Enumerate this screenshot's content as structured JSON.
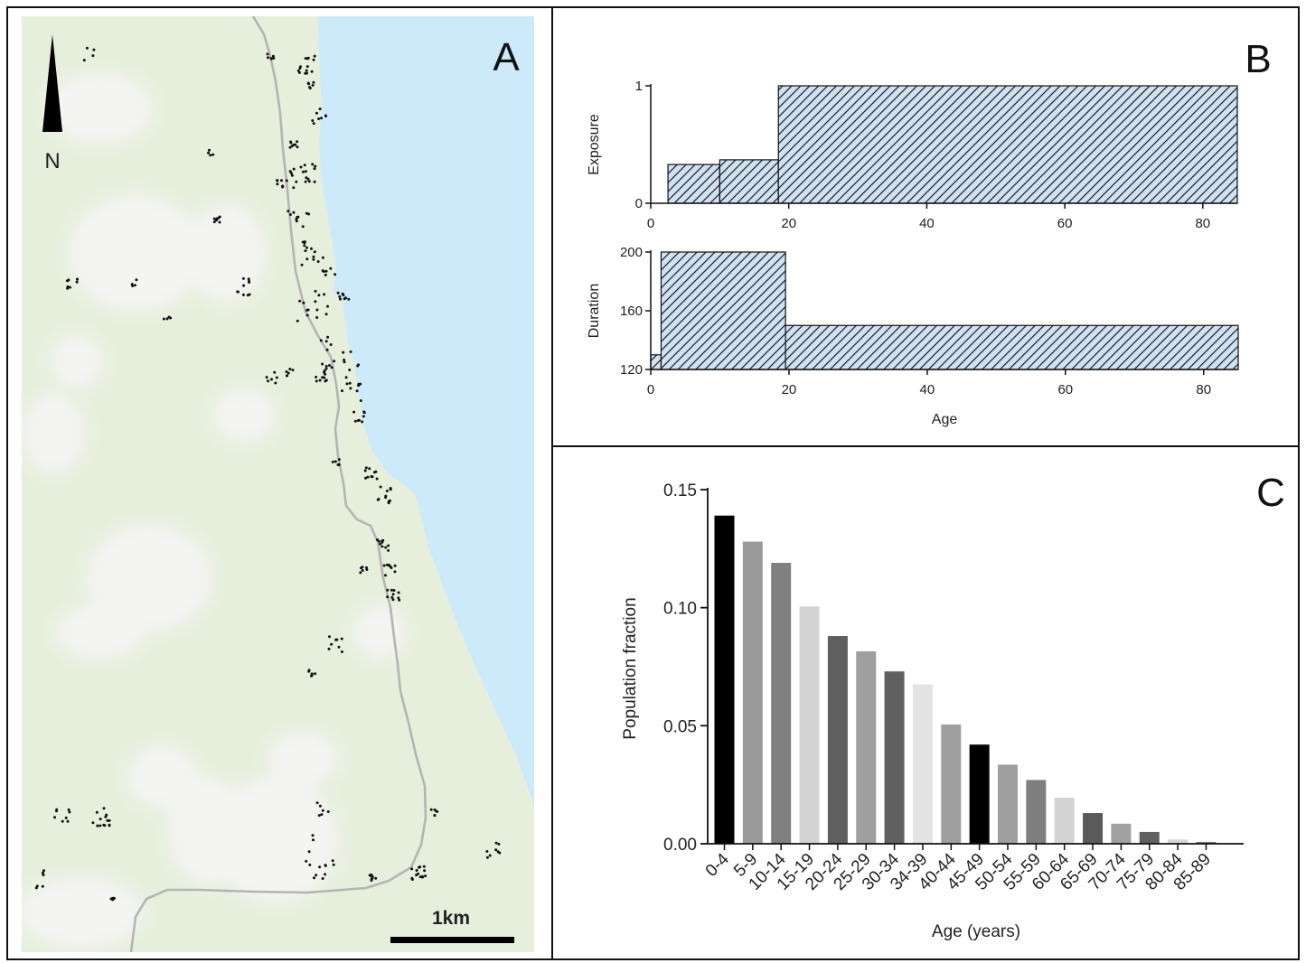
{
  "panels": {
    "a": {
      "letter": "A"
    },
    "b": {
      "letter": "B"
    },
    "c": {
      "letter": "C"
    }
  },
  "map": {
    "north_label": "N",
    "scale_label": "1km",
    "colors": {
      "land": "#e6efdc",
      "water": "#cdeafb",
      "road": "#b4b4b4",
      "clearing": "#f4f4f3",
      "dot": "#111111"
    }
  },
  "chart_data": [
    {
      "type": "area",
      "ylabel": "Exposure",
      "xlim": [
        0,
        85
      ],
      "ylim": [
        0,
        1
      ],
      "xticks": [
        0,
        20,
        40,
        60,
        80
      ],
      "yticks": [
        0,
        1
      ],
      "fill": "#cfe2f3",
      "hatch": true,
      "steps": [
        {
          "x0": 2.5,
          "x1": 10,
          "y": 0.33
        },
        {
          "x0": 10,
          "x1": 18.5,
          "y": 0.37
        },
        {
          "x0": 18.5,
          "x1": 85,
          "y": 1.0
        }
      ]
    },
    {
      "type": "area",
      "ylabel": "Duration",
      "xlabel": "Age",
      "xlim": [
        0,
        85
      ],
      "ylim": [
        120,
        200
      ],
      "xticks": [
        0,
        20,
        40,
        60,
        80
      ],
      "yticks": [
        120,
        160,
        200
      ],
      "fill": "#cfe2f3",
      "hatch": true,
      "steps": [
        {
          "x0": 0,
          "x1": 1.5,
          "y": 130
        },
        {
          "x0": 1.5,
          "x1": 19.5,
          "y": 200
        },
        {
          "x0": 19.5,
          "x1": 85,
          "y": 150
        }
      ]
    },
    {
      "type": "bar",
      "xlabel": "Age (years)",
      "ylabel": "Population fraction",
      "ylim": [
        0,
        0.15
      ],
      "yticks": [
        "0.00",
        "0.05",
        "0.10",
        "0.15"
      ],
      "categories": [
        "0-4",
        "5-9",
        "10-14",
        "15-19",
        "20-24",
        "25-29",
        "30-34",
        "34-39",
        "40-44",
        "45-49",
        "50-54",
        "55-59",
        "60-64",
        "65-69",
        "70-74",
        "75-79",
        "80-84",
        "85-89"
      ],
      "values": [
        0.139,
        0.128,
        0.119,
        0.1005,
        0.088,
        0.0815,
        0.073,
        0.0675,
        0.0505,
        0.042,
        0.0335,
        0.027,
        0.0195,
        0.013,
        0.0085,
        0.005,
        0.0018,
        0.0008
      ],
      "colors": [
        "#000000",
        "#9a9a9a",
        "#808080",
        "#d3d3d3",
        "#5f5f5f",
        "#9f9f9f",
        "#5f5f5f",
        "#e3e3e3",
        "#9f9f9f",
        "#000000",
        "#9f9f9f",
        "#7f7f7f",
        "#d3d3d3",
        "#5a5a5a",
        "#a0a0a0",
        "#5f5f5f",
        "#d6d6d6",
        "#7f7f7f"
      ]
    }
  ]
}
